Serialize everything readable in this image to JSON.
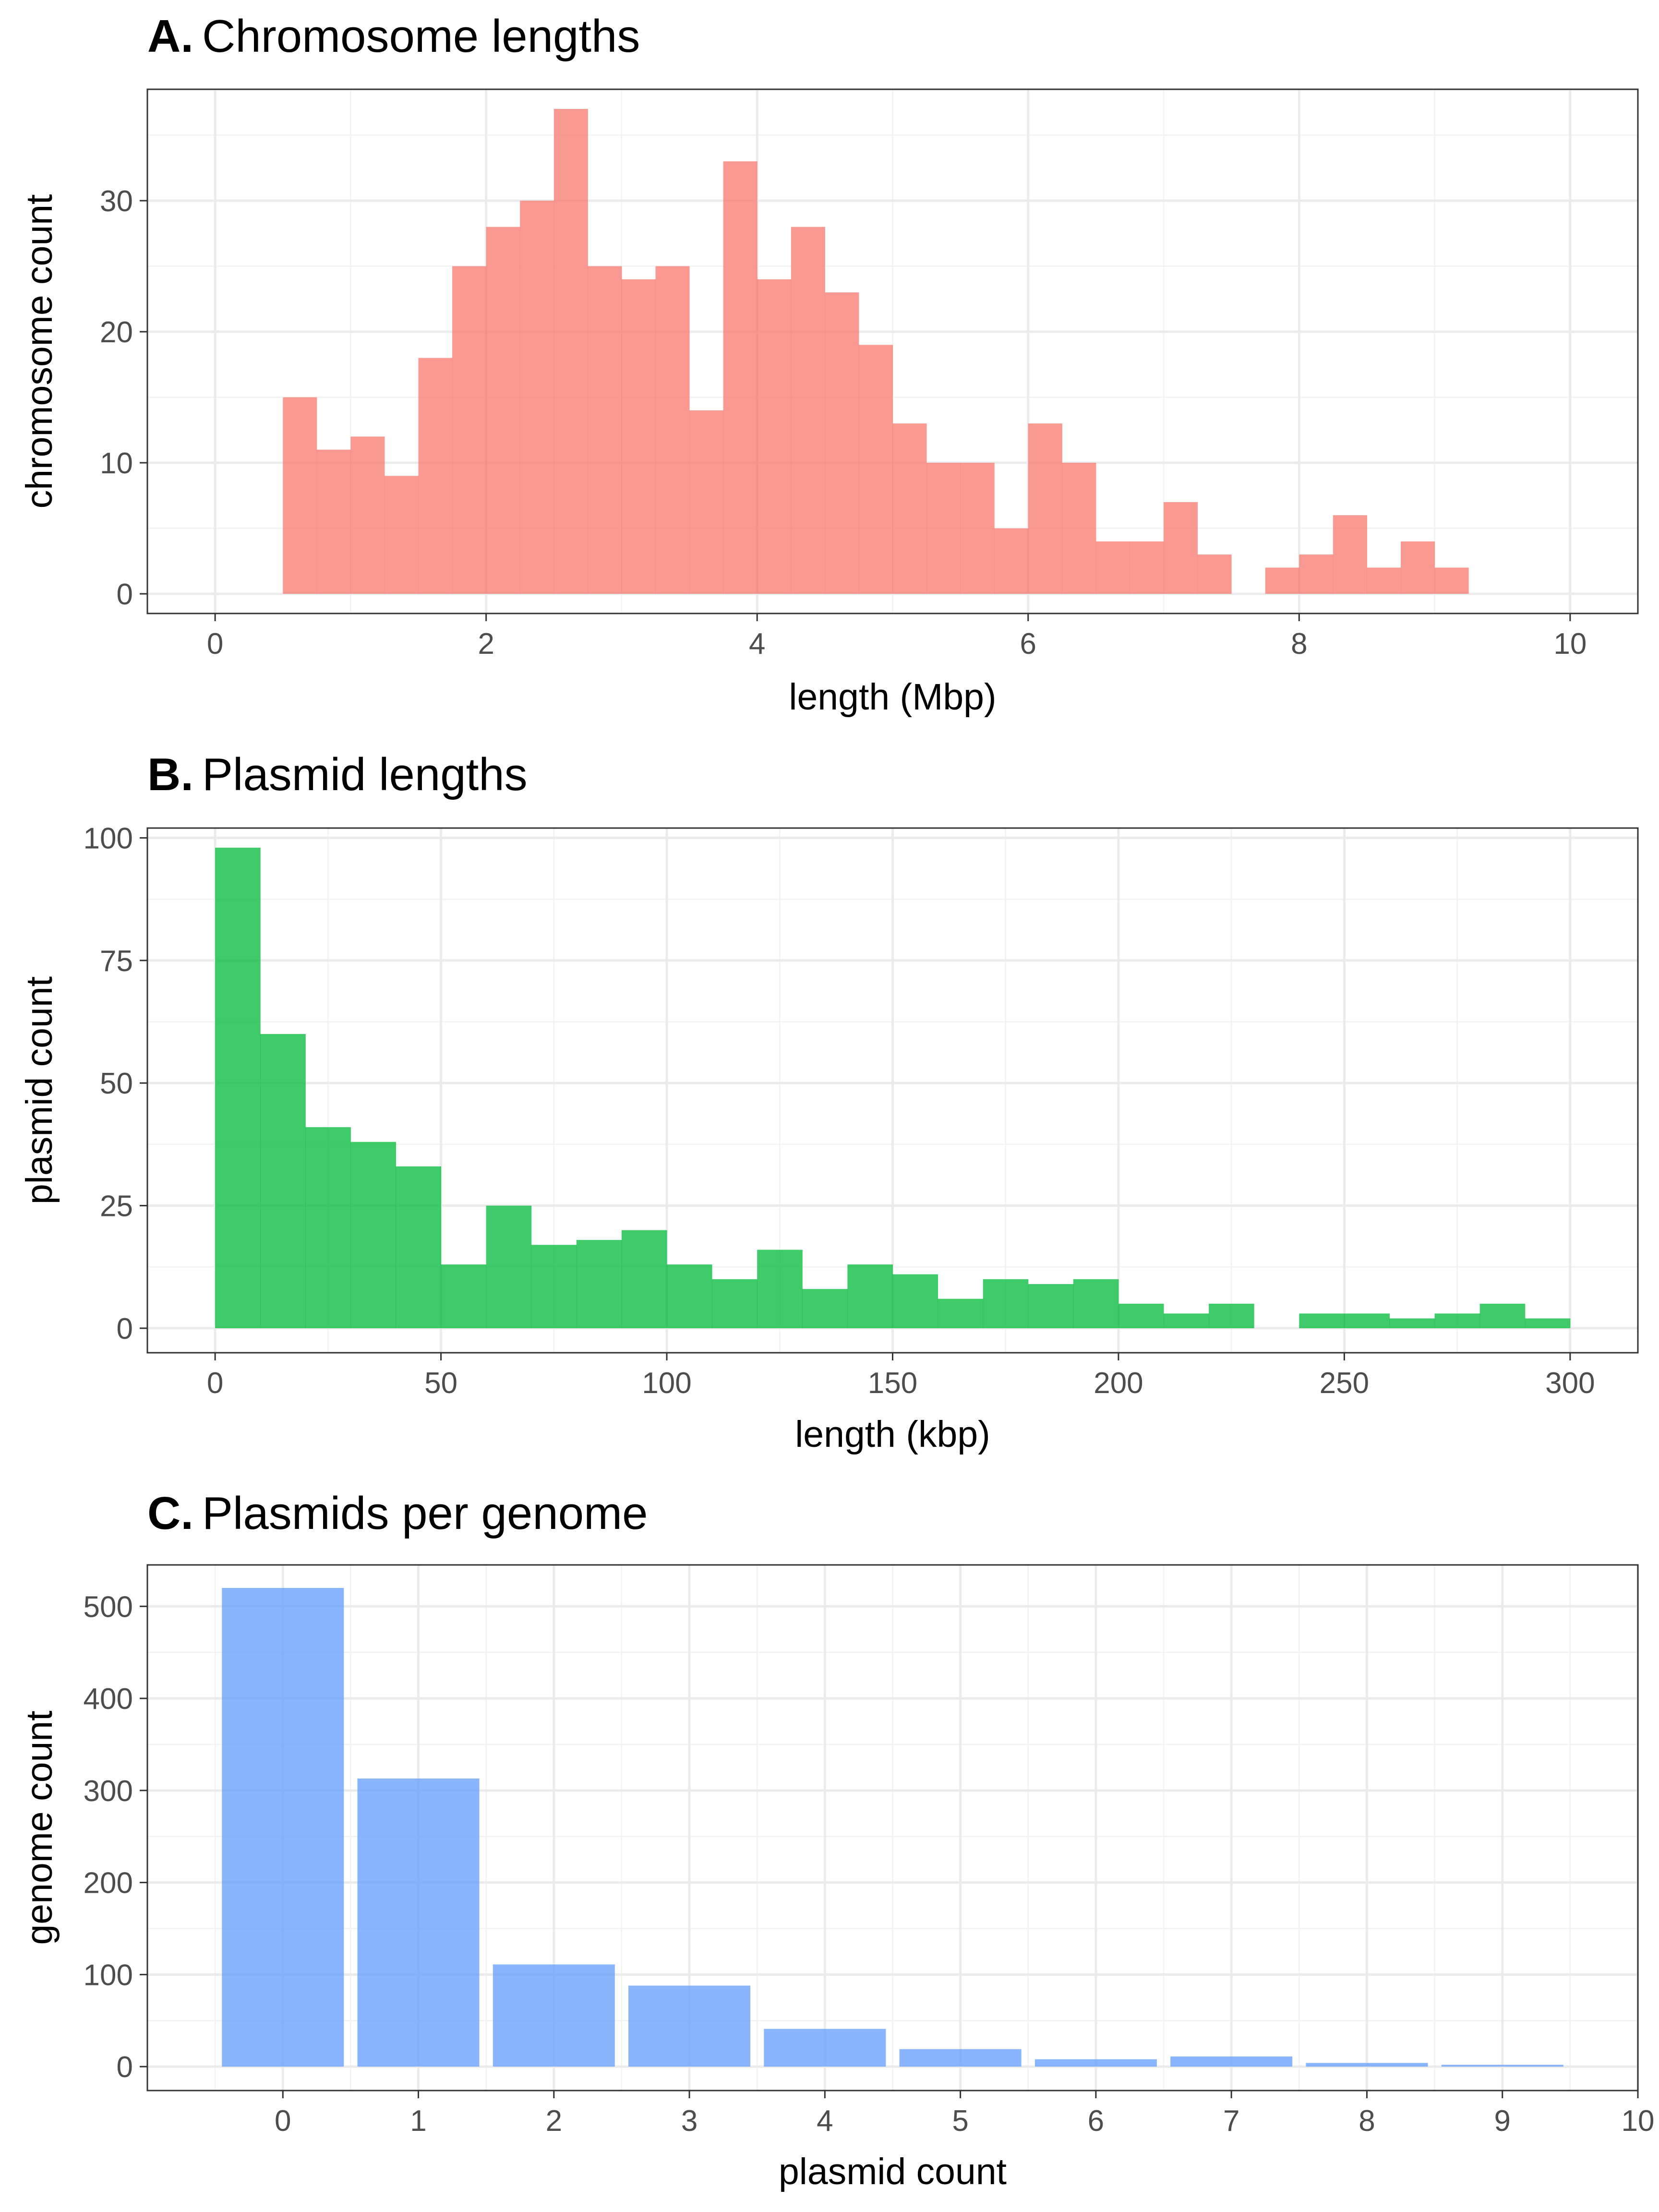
{
  "chart_data": [
    {
      "type": "bar",
      "panel_letter": "A.",
      "title": "Chromosome lengths",
      "xlabel": "length (Mbp)",
      "ylabel": "chromosome count",
      "color": "#F8766D",
      "xlim": [
        -0.5,
        10.5
      ],
      "ylim": [
        -1.5,
        38.5
      ],
      "x_ticks": [
        0,
        2,
        4,
        6,
        8,
        10
      ],
      "y_ticks": [
        0,
        10,
        20,
        30
      ],
      "bin_width": 0.25,
      "bin_start": 0.5,
      "values": [
        15,
        11,
        12,
        9,
        18,
        25,
        28,
        30,
        37,
        25,
        24,
        25,
        14,
        33,
        24,
        28,
        23,
        19,
        13,
        10,
        10,
        5,
        13,
        10,
        4,
        4,
        7,
        3,
        0,
        2,
        3,
        6,
        2,
        4,
        2
      ]
    },
    {
      "type": "bar",
      "panel_letter": "B.",
      "title": "Plasmid lengths",
      "xlabel": "length (kbp)",
      "ylabel": "plasmid count",
      "color": "#00BA38",
      "xlim": [
        -15,
        315
      ],
      "ylim": [
        -5,
        102
      ],
      "x_ticks": [
        0,
        50,
        100,
        150,
        200,
        250,
        300
      ],
      "y_ticks": [
        0,
        25,
        50,
        75,
        100
      ],
      "bin_width": 10,
      "bin_start": 0,
      "values": [
        98,
        60,
        41,
        38,
        33,
        13,
        25,
        17,
        18,
        20,
        13,
        10,
        16,
        8,
        13,
        11,
        6,
        10,
        9,
        10,
        5,
        3,
        5,
        0,
        3,
        3,
        2,
        3,
        5,
        2
      ]
    },
    {
      "type": "bar",
      "panel_letter": "C.",
      "title": "Plasmids per genome",
      "xlabel": "plasmid count",
      "ylabel": "genome count",
      "color": "#619CFF",
      "xlim": [
        -1,
        10
      ],
      "ylim": [
        -26,
        545
      ],
      "x_ticks": [
        0,
        1,
        2,
        3,
        4,
        5,
        6,
        7,
        8,
        9,
        10
      ],
      "y_ticks": [
        0,
        100,
        200,
        300,
        400,
        500
      ],
      "bar_width": 0.9,
      "categories": [
        0,
        1,
        2,
        3,
        4,
        5,
        6,
        7,
        8,
        9
      ],
      "values": [
        520,
        313,
        111,
        88,
        41,
        19,
        8,
        11,
        4,
        2
      ]
    }
  ]
}
